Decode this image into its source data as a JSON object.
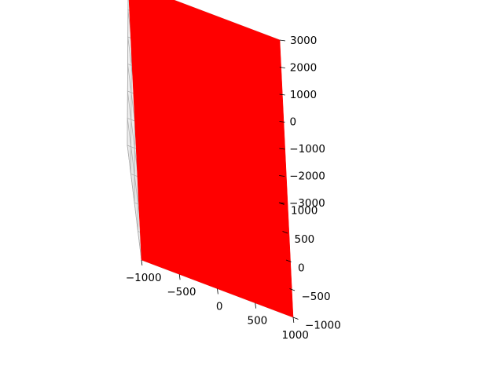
{
  "chart_data": {
    "type": "surface",
    "title": "",
    "xlabel": "",
    "ylabel": "",
    "zlabel": "",
    "xlim": [
      -1000,
      1000
    ],
    "ylim": [
      -1000,
      1000
    ],
    "zlim": [
      -3000,
      3000
    ],
    "grid": true,
    "surface_color": "#ff0000",
    "surface": {
      "description_free": true,
      "corners": [
        {
          "x": -1000,
          "y": -1000,
          "z": -3000
        },
        {
          "x": 1000,
          "y": -1000,
          "z": -3000
        },
        {
          "x": 1000,
          "y": 1000,
          "z": 3000
        },
        {
          "x": -1000,
          "y": 1000,
          "z": 3000
        }
      ]
    },
    "x_ticks": [
      {
        "value": -1000,
        "label": "−1000"
      },
      {
        "value": -500,
        "label": "−500"
      },
      {
        "value": 0,
        "label": "0"
      },
      {
        "value": 500,
        "label": "500"
      },
      {
        "value": 1000,
        "label": "1000"
      }
    ],
    "y_ticks": [
      {
        "value": -1000,
        "label": "−1000"
      },
      {
        "value": -500,
        "label": "−500"
      },
      {
        "value": 0,
        "label": "0"
      },
      {
        "value": 500,
        "label": "500"
      },
      {
        "value": 1000,
        "label": "1000"
      }
    ],
    "z_ticks": [
      {
        "value": -3000,
        "label": "−3000"
      },
      {
        "value": -2000,
        "label": "−2000"
      },
      {
        "value": -1000,
        "label": "−1000"
      },
      {
        "value": 0,
        "label": "0"
      },
      {
        "value": 1000,
        "label": "1000"
      },
      {
        "value": 2000,
        "label": "2000"
      },
      {
        "value": 3000,
        "label": "3000"
      }
    ]
  }
}
